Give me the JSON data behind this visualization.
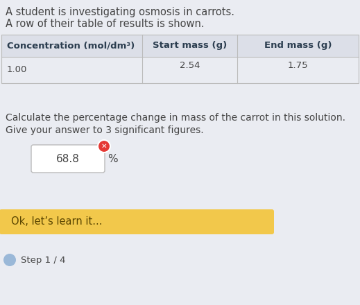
{
  "bg_color": "#eaecf2",
  "title_line1": "A student is investigating osmosis in carrots.",
  "title_line2": "A row of their table of results is shown.",
  "table_headers": [
    "Concentration (mol/dm³)",
    "Start mass (g)",
    "End mass (g)"
  ],
  "table_row_col0": "1.00",
  "table_row_col1": "2.54",
  "table_row_col2": "1.75",
  "question_line1": "Calculate the percentage change in mass of the carrot in this solution.",
  "question_line2": "Give your answer to 3 significant figures.",
  "answer_value": "68.8",
  "answer_unit": "%",
  "button_text": "Ok, let’s learn it...",
  "step_text": "Step 1 / 4",
  "button_color": "#f2c84b",
  "button_text_color": "#5a4500",
  "step_circle_color": "#9ab8d8",
  "cross_color": "#e53935",
  "input_box_color": "#ffffff",
  "input_border_color": "#bbbbbb",
  "text_color_dark": "#444444",
  "text_color_header": "#2c3e50",
  "table_line_color": "#bbbbbb",
  "table_header_bg": "#dcdfe8",
  "table_row_bg": "#eaecf2",
  "font_size_title": 10.5,
  "font_size_table_header": 9.5,
  "font_size_table_data": 9.5,
  "font_size_question": 10,
  "font_size_answer": 11,
  "font_size_button": 10.5,
  "font_size_step": 9.5
}
